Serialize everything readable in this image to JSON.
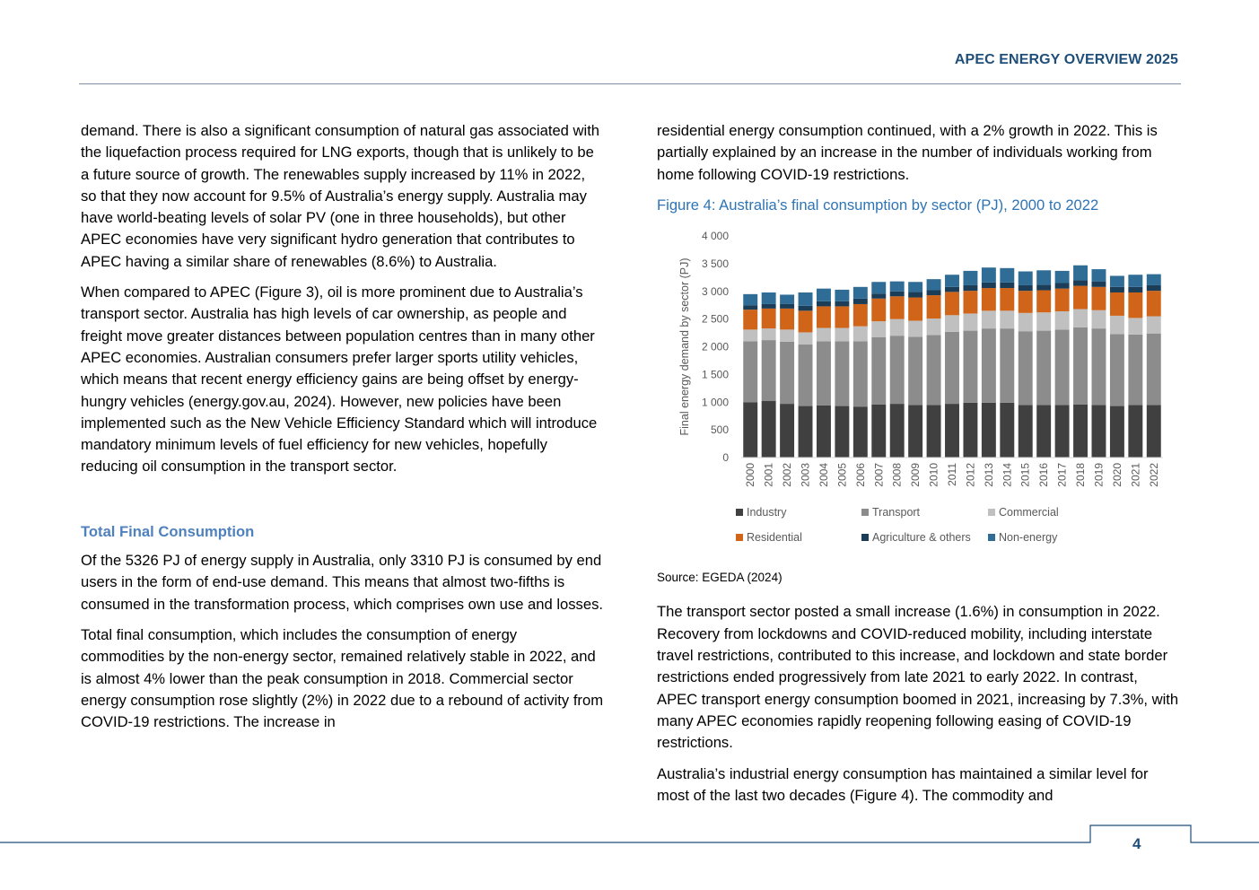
{
  "header": {
    "title": "APEC ENERGY OVERVIEW 2025"
  },
  "left": {
    "p1": "demand. There is also a significant consumption of natural gas associated with the liquefaction process required for LNG exports, though that is unlikely to be a future source of growth. The renewables supply increased by 11% in 2022, so that they now account for 9.5% of Australia’s energy supply. Australia may have world-beating levels of solar PV (one in three households), but other APEC economies have very significant hydro generation that contributes to APEC having a similar share of renewables (8.6%) to Australia.",
    "p2": "When compared to APEC (Figure 3), oil is more prominent due to Australia’s transport sector. Australia has high levels of car ownership, as people and freight move greater distances between population centres than in many other APEC economies. Australian consumers prefer larger sports utility vehicles, which means that recent energy efficiency gains are being offset by energy-hungry vehicles (energy.gov.au, 2024). However, new policies have been implemented such as the New Vehicle Efficiency Standard which will introduce mandatory minimum levels of fuel efficiency for new vehicles, hopefully reducing oil consumption in the transport sector.",
    "heading": "Total Final Consumption",
    "p3": "Of the 5326 PJ of energy supply in Australia, only 3310 PJ is consumed by end users in the form of end-use demand. This means that almost two-fifths is consumed in the transformation process, which comprises own use and losses.",
    "p4": "Total final consumption, which includes the consumption of energy commodities by the non-energy sector, remained relatively stable in 2022, and is almost 4% lower than the peak consumption in 2018. Commercial sector energy consumption rose slightly (2%) in 2022 due to a rebound of activity from COVID-19 restrictions. The increase in"
  },
  "right": {
    "p1": "residential energy consumption continued, with a 2% growth in 2022. This is partially explained by an increase in the number of individuals working from home following COVID-19 restrictions.",
    "figure_caption": "Figure 4: Australia’s final consumption by sector (PJ), 2000 to 2022",
    "source": "Source: EGEDA (2024)",
    "p2": "The transport sector posted a small increase (1.6%) in consumption in 2022. Recovery from lockdowns and COVID-reduced mobility, including interstate travel restrictions, contributed to this increase, and lockdown and state border restrictions ended progressively from late 2021 to early 2022. In contrast, APEC transport energy consumption boomed in 2021, increasing by 7.3%, with many APEC economies rapidly reopening following easing of COVID-19 restrictions.",
    "p3": "Australia’s industrial energy consumption has maintained a similar level for most of the last two decades (Figure 4). The commodity and"
  },
  "footer": {
    "page_number": "4"
  },
  "chart_data": {
    "type": "bar",
    "stacked": true,
    "ylabel": "Final energy demand by sector (PJ)",
    "xlabel": "",
    "ylim": [
      0,
      4000
    ],
    "yticks": [
      0,
      500,
      1000,
      1500,
      2000,
      2500,
      3000,
      3500,
      4000
    ],
    "ytick_labels": [
      "0",
      "500",
      "1 000",
      "1 500",
      "2 000",
      "2 500",
      "3 000",
      "3 500",
      "4 000"
    ],
    "grid": false,
    "legend_position": "bottom",
    "categories": [
      "2000",
      "2001",
      "2002",
      "2003",
      "2004",
      "2005",
      "2006",
      "2007",
      "2008",
      "2009",
      "2010",
      "2011",
      "2012",
      "2013",
      "2014",
      "2015",
      "2016",
      "2017",
      "2018",
      "2019",
      "2020",
      "2021",
      "2022"
    ],
    "series": [
      {
        "name": "Industry",
        "color": "#404040",
        "values": [
          1000,
          1020,
          970,
          930,
          940,
          930,
          920,
          960,
          970,
          950,
          950,
          970,
          990,
          990,
          990,
          950,
          950,
          950,
          960,
          950,
          930,
          950,
          950
        ]
      },
      {
        "name": "Transport",
        "color": "#8c8c8c",
        "values": [
          1100,
          1100,
          1120,
          1110,
          1160,
          1170,
          1180,
          1210,
          1230,
          1230,
          1260,
          1300,
          1300,
          1340,
          1340,
          1330,
          1340,
          1360,
          1390,
          1380,
          1300,
          1270,
          1290
        ]
      },
      {
        "name": "Commercial",
        "color": "#c0c0c0",
        "values": [
          210,
          210,
          220,
          220,
          240,
          240,
          270,
          290,
          300,
          290,
          300,
          300,
          310,
          320,
          320,
          330,
          330,
          330,
          330,
          330,
          330,
          300,
          310
        ]
      },
      {
        "name": "Residential",
        "color": "#d0651a",
        "values": [
          360,
          360,
          380,
          390,
          390,
          390,
          400,
          410,
          410,
          420,
          420,
          420,
          410,
          410,
          410,
          400,
          400,
          410,
          420,
          420,
          420,
          460,
          460
        ]
      },
      {
        "name": "Agriculture & others",
        "color": "#1b3d57",
        "values": [
          80,
          80,
          80,
          90,
          90,
          90,
          100,
          90,
          90,
          100,
          90,
          90,
          100,
          100,
          100,
          100,
          100,
          100,
          100,
          100,
          100,
          100,
          100
        ]
      },
      {
        "name": "Non-energy",
        "color": "#2f6d96",
        "values": [
          200,
          210,
          170,
          240,
          230,
          210,
          210,
          210,
          180,
          180,
          200,
          220,
          260,
          270,
          260,
          250,
          260,
          220,
          270,
          220,
          200,
          220,
          200
        ]
      }
    ]
  }
}
